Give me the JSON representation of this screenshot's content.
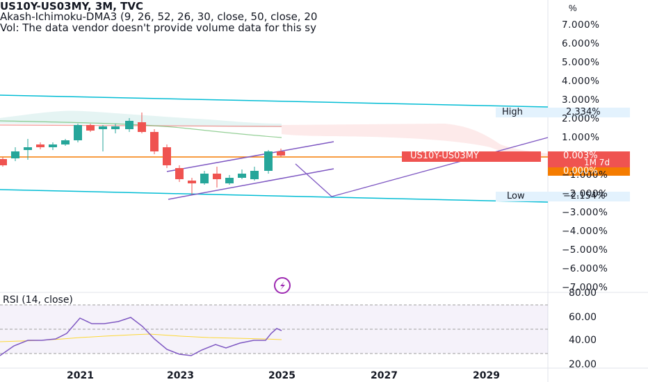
{
  "legend": {
    "title": "US10Y-US03MY, 3M, TVC",
    "indicator": "Akash-Ichimoku-DMA3 (9, 26, 52, 26, 30, close, 50, close, 20",
    "volume_note": "Vol: The data vendor doesn't provide volume data for this sy"
  },
  "price_axis": {
    "unit": "%",
    "ticks": [
      "7.000%",
      "6.000%",
      "5.000%",
      "4.000%",
      "3.000%",
      "2.000%",
      "1.000%",
      "−1.000%",
      "−2.000%",
      "−3.000%",
      "−4.000%",
      "−5.000%",
      "−6.000%",
      "−7.000%"
    ]
  },
  "markers": {
    "high_label": "High",
    "high_value": "2.334%",
    "low_label": "Low",
    "low_value": "−2.154%",
    "symbol_label": "US10Y-US03MY",
    "last_value": "0.003%",
    "countdown": "1M 7d",
    "secondary_value": "0.000%"
  },
  "rsi": {
    "title": "RSI (14, close)",
    "ticks": [
      "80.00",
      "60.00",
      "40.00",
      "20.00"
    ]
  },
  "time_axis": [
    "2021",
    "2023",
    "2025",
    "2027",
    "2029"
  ],
  "colors": {
    "up": "#26a69a",
    "down": "#ef5350",
    "channel": "#00bcd4",
    "pattern": "#7e57c2",
    "hline": "#f57c00",
    "rsi": "#7e57c2"
  }
}
